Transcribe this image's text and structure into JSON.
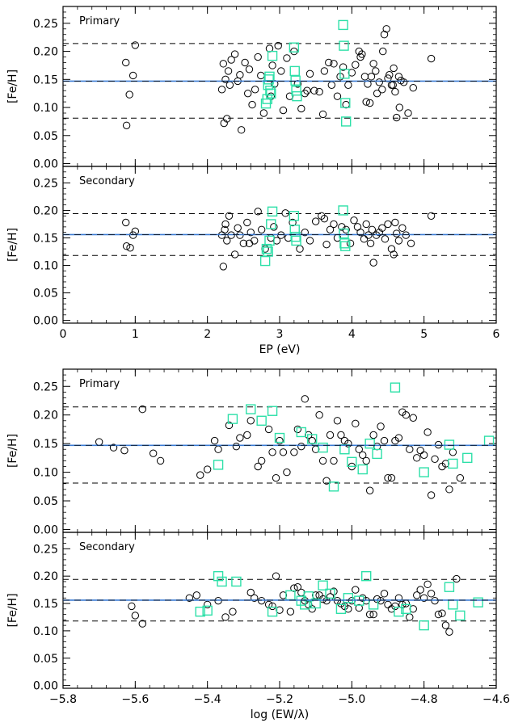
{
  "chart_data": [
    {
      "type": "scatter",
      "panel_label": "Primary",
      "xlabel": "",
      "ylabel": "[Fe/H]",
      "xlim": [
        0,
        6
      ],
      "ylim": [
        -0.005,
        0.28
      ],
      "yticks": [
        "0.00",
        "0.05",
        "0.10",
        "0.15",
        "0.20",
        "0.25"
      ],
      "xticks": [],
      "mean_line": 0.147,
      "dashed_lines": [
        0.081,
        0.214
      ],
      "colors": {
        "circle": "#000000",
        "square": "#2de0a8",
        "mean": "#3a7bd5"
      },
      "series": [
        {
          "marker": "circle",
          "x": [
            0.87,
            0.88,
            0.92,
            0.97,
            1.0,
            2.2,
            2.22,
            2.25,
            2.27,
            2.29,
            2.33,
            2.38,
            2.42,
            2.45,
            2.47,
            2.52,
            2.58,
            2.62,
            2.66,
            2.7,
            2.74,
            2.78,
            2.86,
            2.9,
            2.93,
            2.98,
            3.02,
            3.05,
            3.1,
            3.14,
            3.2,
            3.25,
            3.3,
            3.35,
            3.42,
            3.48,
            3.55,
            3.62,
            3.68,
            3.72,
            3.75,
            3.8,
            3.84,
            3.88,
            3.92,
            3.95,
            4.0,
            4.05,
            4.1,
            4.14,
            4.18,
            4.2,
            4.22,
            4.25,
            4.27,
            4.3,
            4.33,
            4.35,
            4.38,
            4.42,
            4.45,
            4.48,
            4.52,
            4.55,
            4.58,
            4.6,
            4.62,
            4.65,
            4.68,
            4.72,
            4.78,
            4.85,
            5.1,
            2.23,
            2.56,
            2.88,
            3.6,
            4.12,
            4.5,
            4.66,
            2.31,
            3.38,
            4.43,
            4.57
          ],
          "y": [
            0.18,
            0.068,
            0.123,
            0.157,
            0.211,
            0.132,
            0.178,
            0.15,
            0.08,
            0.165,
            0.185,
            0.195,
            0.147,
            0.158,
            0.06,
            0.18,
            0.168,
            0.105,
            0.132,
            0.19,
            0.157,
            0.09,
            0.205,
            0.175,
            0.142,
            0.21,
            0.165,
            0.095,
            0.188,
            0.12,
            0.2,
            0.142,
            0.098,
            0.125,
            0.16,
            0.13,
            0.128,
            0.165,
            0.18,
            0.14,
            0.178,
            0.12,
            0.155,
            0.172,
            0.105,
            0.14,
            0.162,
            0.176,
            0.2,
            0.195,
            0.155,
            0.11,
            0.142,
            0.108,
            0.155,
            0.178,
            0.165,
            0.125,
            0.145,
            0.132,
            0.23,
            0.24,
            0.158,
            0.14,
            0.17,
            0.128,
            0.082,
            0.155,
            0.148,
            0.145,
            0.09,
            0.135,
            0.187,
            0.072,
            0.125,
            0.12,
            0.088,
            0.19,
            0.152,
            0.1,
            0.14,
            0.13,
            0.2,
            0.14
          ]
        },
        {
          "marker": "square",
          "x": [
            2.81,
            2.83,
            2.84,
            2.85,
            2.86,
            2.87,
            2.88,
            2.9,
            3.2,
            3.21,
            3.22,
            3.23,
            3.24,
            3.88,
            3.89,
            3.9,
            3.91,
            3.92
          ],
          "y": [
            0.107,
            0.115,
            0.14,
            0.15,
            0.155,
            0.13,
            0.125,
            0.192,
            0.207,
            0.165,
            0.148,
            0.13,
            0.12,
            0.247,
            0.21,
            0.16,
            0.108,
            0.075
          ]
        }
      ]
    },
    {
      "type": "scatter",
      "panel_label": "Secondary",
      "xlabel": "EP (eV)",
      "ylabel": "[Fe/H]",
      "xlim": [
        0,
        6
      ],
      "ylim": [
        -0.005,
        0.28
      ],
      "yticks": [
        "0.00",
        "0.05",
        "0.10",
        "0.15",
        "0.20",
        "0.25"
      ],
      "xticks": [
        "0",
        "1",
        "2",
        "3",
        "4",
        "5",
        "6"
      ],
      "mean_line": 0.156,
      "dashed_lines": [
        0.118,
        0.194
      ],
      "colors": {
        "circle": "#000000",
        "square": "#2de0a8",
        "mean": "#3a7bd5"
      },
      "series": [
        {
          "marker": "circle",
          "x": [
            0.87,
            0.88,
            0.93,
            0.97,
            1.0,
            2.2,
            2.22,
            2.25,
            2.27,
            2.3,
            2.33,
            2.38,
            2.42,
            2.45,
            2.5,
            2.55,
            2.6,
            2.65,
            2.7,
            2.75,
            2.8,
            2.88,
            2.92,
            2.96,
            3.02,
            3.08,
            3.12,
            3.18,
            3.28,
            3.35,
            3.42,
            3.5,
            3.58,
            3.65,
            3.7,
            3.75,
            3.8,
            3.86,
            3.92,
            3.98,
            4.03,
            4.08,
            4.12,
            4.17,
            4.2,
            4.23,
            4.26,
            4.3,
            4.34,
            4.38,
            4.42,
            4.46,
            4.5,
            4.55,
            4.58,
            4.62,
            4.65,
            4.7,
            4.75,
            4.82,
            5.1,
            2.24,
            2.58,
            3.62,
            4.28,
            4.6
          ],
          "y": [
            0.178,
            0.135,
            0.132,
            0.155,
            0.162,
            0.155,
            0.098,
            0.175,
            0.145,
            0.19,
            0.155,
            0.12,
            0.168,
            0.155,
            0.14,
            0.178,
            0.16,
            0.145,
            0.198,
            0.165,
            0.13,
            0.15,
            0.17,
            0.145,
            0.155,
            0.195,
            0.15,
            0.178,
            0.13,
            0.16,
            0.145,
            0.18,
            0.19,
            0.138,
            0.165,
            0.175,
            0.15,
            0.17,
            0.165,
            0.14,
            0.182,
            0.17,
            0.16,
            0.148,
            0.175,
            0.155,
            0.14,
            0.105,
            0.155,
            0.16,
            0.168,
            0.148,
            0.175,
            0.13,
            0.12,
            0.158,
            0.145,
            0.168,
            0.155,
            0.14,
            0.19,
            0.165,
            0.14,
            0.185,
            0.165,
            0.178
          ]
        },
        {
          "marker": "square",
          "x": [
            2.8,
            2.82,
            2.84,
            2.86,
            2.88,
            2.9,
            3.2,
            3.21,
            3.22,
            3.23,
            3.88,
            3.89,
            3.9,
            3.91
          ],
          "y": [
            0.108,
            0.13,
            0.125,
            0.145,
            0.175,
            0.198,
            0.19,
            0.165,
            0.152,
            0.145,
            0.2,
            0.158,
            0.14,
            0.135
          ]
        }
      ]
    },
    {
      "type": "scatter",
      "panel_label": "Primary",
      "xlabel": "",
      "ylabel": "[Fe/H]",
      "xlim": [
        -5.8,
        -4.6
      ],
      "ylim": [
        -0.005,
        0.28
      ],
      "yticks": [
        "0.00",
        "0.05",
        "0.10",
        "0.15",
        "0.20",
        "0.25"
      ],
      "xticks": [],
      "mean_line": 0.147,
      "dashed_lines": [
        0.081,
        0.214
      ],
      "colors": {
        "circle": "#000000",
        "square": "#2de0a8",
        "mean": "#3a7bd5"
      },
      "series": [
        {
          "marker": "circle",
          "x": [
            -5.7,
            -5.66,
            -5.63,
            -5.58,
            -5.55,
            -5.53,
            -5.42,
            -5.4,
            -5.37,
            -5.34,
            -5.31,
            -5.28,
            -5.25,
            -5.22,
            -5.2,
            -5.18,
            -5.15,
            -5.13,
            -5.1,
            -5.08,
            -5.06,
            -5.04,
            -5.02,
            -5.0,
            -4.98,
            -4.96,
            -4.94,
            -4.92,
            -4.9,
            -4.88,
            -4.86,
            -4.84,
            -4.82,
            -4.8,
            -4.78,
            -4.76,
            -4.74,
            -4.72,
            -4.7,
            -5.38,
            -5.29,
            -5.23,
            -5.16,
            -5.11,
            -5.05,
            -4.99,
            -4.93,
            -4.87,
            -4.81,
            -4.75,
            -5.21,
            -5.14,
            -5.09,
            -5.03,
            -4.97,
            -4.91,
            -4.85,
            -4.79,
            -4.73,
            -5.32,
            -5.26,
            -5.19,
            -5.12,
            -5.07,
            -5.01,
            -4.95,
            -4.89,
            -4.83,
            -4.77
          ],
          "y": [
            0.153,
            0.143,
            0.138,
            0.21,
            0.133,
            0.12,
            0.095,
            0.105,
            0.14,
            0.182,
            0.16,
            0.19,
            0.12,
            0.135,
            0.155,
            0.1,
            0.175,
            0.228,
            0.14,
            0.12,
            0.165,
            0.19,
            0.155,
            0.11,
            0.14,
            0.12,
            0.165,
            0.18,
            0.09,
            0.155,
            0.205,
            0.14,
            0.125,
            0.13,
            0.06,
            0.148,
            0.115,
            0.135,
            0.09,
            0.155,
            0.165,
            0.175,
            0.135,
            0.155,
            0.12,
            0.185,
            0.145,
            0.16,
            0.138,
            0.11,
            0.09,
            0.145,
            0.2,
            0.165,
            0.13,
            0.155,
            0.2,
            0.17,
            0.07,
            0.145,
            0.11,
            0.135,
            0.165,
            0.085,
            0.15,
            0.068,
            0.09,
            0.195,
            0.123
          ]
        },
        {
          "marker": "square",
          "x": [
            -5.37,
            -5.33,
            -5.28,
            -5.25,
            -5.22,
            -5.2,
            -5.11,
            -5.08,
            -5.05,
            -5.0,
            -4.97,
            -4.93,
            -4.88,
            -4.8,
            -4.73,
            -4.72,
            -4.68,
            -4.62,
            -5.14,
            -5.02,
            -4.95
          ],
          "y": [
            0.113,
            0.193,
            0.21,
            0.19,
            0.207,
            0.16,
            0.158,
            0.143,
            0.075,
            0.118,
            0.105,
            0.132,
            0.248,
            0.1,
            0.148,
            0.115,
            0.125,
            0.155,
            0.17,
            0.14,
            0.15
          ]
        }
      ]
    },
    {
      "type": "scatter",
      "panel_label": "Secondary",
      "xlabel": "log (EW/λ)",
      "ylabel": "[Fe/H]",
      "xlim": [
        -5.8,
        -4.6
      ],
      "ylim": [
        -0.005,
        0.28
      ],
      "yticks": [
        "0.00",
        "0.05",
        "0.10",
        "0.15",
        "0.20",
        "0.25"
      ],
      "xticks": [
        "−5.8",
        "−5.6",
        "−5.4",
        "−5.2",
        "−5.0",
        "−4.8",
        "−4.6"
      ],
      "mean_line": 0.156,
      "dashed_lines": [
        0.118,
        0.194
      ],
      "colors": {
        "circle": "#000000",
        "square": "#2de0a8",
        "mean": "#3a7bd5"
      },
      "series": [
        {
          "marker": "circle",
          "x": [
            -5.61,
            -5.6,
            -5.58,
            -5.45,
            -5.43,
            -5.4,
            -5.37,
            -5.33,
            -5.28,
            -5.25,
            -5.22,
            -5.19,
            -5.17,
            -5.15,
            -5.13,
            -5.11,
            -5.09,
            -5.07,
            -5.05,
            -5.03,
            -5.01,
            -4.99,
            -4.97,
            -4.95,
            -4.93,
            -4.91,
            -4.89,
            -4.87,
            -4.85,
            -4.83,
            -4.81,
            -4.79,
            -4.77,
            -4.75,
            -4.73,
            -4.71,
            -5.35,
            -5.27,
            -5.2,
            -5.14,
            -5.08,
            -5.02,
            -4.96,
            -4.9,
            -4.84,
            -4.78,
            -5.23,
            -5.16,
            -5.1,
            -5.04,
            -4.98,
            -4.92,
            -4.86,
            -4.8,
            -4.74,
            -5.21,
            -5.12,
            -5.06,
            -5.0,
            -4.94,
            -4.88,
            -4.82,
            -4.76
          ],
          "y": [
            0.145,
            0.128,
            0.113,
            0.16,
            0.165,
            0.148,
            0.155,
            0.135,
            0.17,
            0.155,
            0.145,
            0.165,
            0.135,
            0.18,
            0.155,
            0.14,
            0.165,
            0.155,
            0.172,
            0.15,
            0.14,
            0.175,
            0.16,
            0.13,
            0.158,
            0.168,
            0.14,
            0.16,
            0.15,
            0.14,
            0.175,
            0.185,
            0.155,
            0.132,
            0.098,
            0.195,
            0.125,
            0.16,
            0.138,
            0.17,
            0.158,
            0.145,
            0.155,
            0.148,
            0.125,
            0.168,
            0.148,
            0.178,
            0.165,
            0.155,
            0.142,
            0.155,
            0.148,
            0.16,
            0.11,
            0.2,
            0.148,
            0.162,
            0.155,
            0.13,
            0.145,
            0.165,
            0.13
          ]
        },
        {
          "marker": "square",
          "x": [
            -5.42,
            -5.4,
            -5.37,
            -5.36,
            -5.32,
            -5.22,
            -5.17,
            -5.14,
            -5.13,
            -5.12,
            -5.1,
            -5.08,
            -5.06,
            -5.03,
            -5.01,
            -4.98,
            -4.96,
            -4.94,
            -4.87,
            -4.85,
            -4.8,
            -4.73,
            -4.72,
            -4.7,
            -4.65
          ],
          "y": [
            0.135,
            0.137,
            0.2,
            0.19,
            0.19,
            0.135,
            0.165,
            0.155,
            0.148,
            0.163,
            0.15,
            0.183,
            0.168,
            0.14,
            0.16,
            0.155,
            0.2,
            0.148,
            0.135,
            0.14,
            0.11,
            0.18,
            0.148,
            0.128,
            0.152
          ]
        }
      ]
    }
  ]
}
